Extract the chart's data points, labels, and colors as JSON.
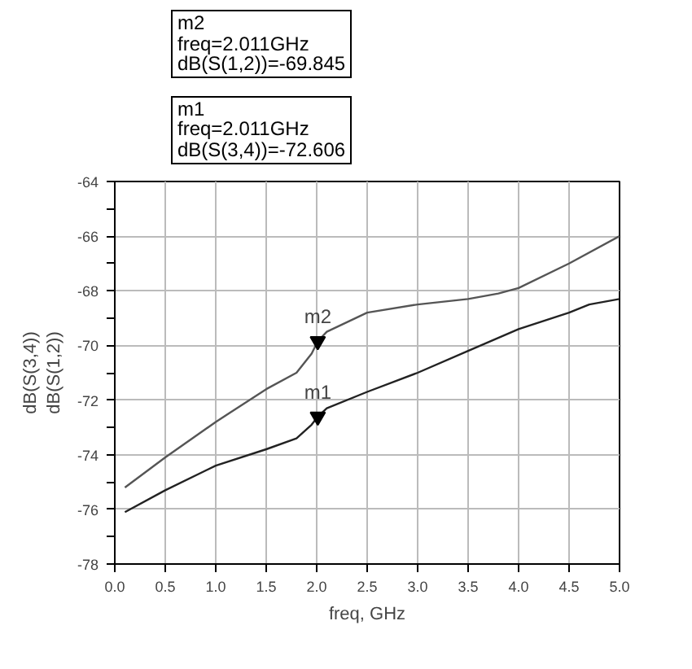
{
  "chart_data": {
    "type": "line",
    "xlabel": "freq, GHz",
    "ylabel": "dB(S(3,4))\ndB(S(1,2))",
    "xlim": [
      0,
      5
    ],
    "ylim": [
      -78,
      -64
    ],
    "xticks": [
      {
        "value": 0,
        "label": "0.0"
      },
      {
        "value": 0.5,
        "label": "0.5"
      },
      {
        "value": 1,
        "label": "1.0"
      },
      {
        "value": 1.5,
        "label": "1.5"
      },
      {
        "value": 2,
        "label": "2.0"
      },
      {
        "value": 2.5,
        "label": "2.5"
      },
      {
        "value": 3,
        "label": "3.0"
      },
      {
        "value": 3.5,
        "label": "3.5"
      },
      {
        "value": 4,
        "label": "4.0"
      },
      {
        "value": 4.5,
        "label": "4.5"
      },
      {
        "value": 5,
        "label": "5.0"
      }
    ],
    "yticks": [
      -78,
      {
        "value": -77,
        "label": null
      },
      -76,
      {
        "value": -75,
        "label": null
      },
      -74,
      {
        "value": -73,
        "label": null
      },
      -72,
      {
        "value": -71,
        "label": null
      },
      -70,
      {
        "value": -69,
        "label": null
      },
      -68,
      {
        "value": -67,
        "label": null
      },
      -66,
      {
        "value": -65,
        "label": null
      },
      -64
    ],
    "grid": true,
    "marker": "none",
    "line_style": "solid",
    "series": [
      {
        "color": "#555555",
        "x": [
          0.1,
          0.5,
          1.0,
          1.5,
          1.8,
          1.95,
          2.011,
          2.1,
          2.5,
          3.0,
          3.5,
          3.8,
          4.0,
          4.5,
          5.0
        ],
        "values": [
          -75.2,
          -74.1,
          -72.8,
          -71.6,
          -71.0,
          -70.3,
          -69.845,
          -69.5,
          -68.8,
          -68.5,
          -68.3,
          -68.1,
          -67.9,
          -67.0,
          -66.0
        ]
      },
      {
        "color": "#222222",
        "x": [
          0.1,
          0.5,
          1.0,
          1.5,
          1.8,
          1.95,
          2.011,
          2.1,
          2.5,
          3.0,
          3.5,
          4.0,
          4.5,
          4.7,
          5.0
        ],
        "values": [
          -76.1,
          -75.3,
          -74.4,
          -73.8,
          -73.4,
          -72.9,
          -72.606,
          -72.3,
          -71.7,
          -71.0,
          -70.2,
          -69.4,
          -68.8,
          -68.5,
          -68.3
        ]
      }
    ],
    "annotations": [
      "m2\nfreq=2.011GHz\ndB(S(1,2))=-69.845",
      "m1\nfreq=2.011GHz\ndB(S(3,4))=-72.606",
      {
        "text": "m2",
        "x": 2.011,
        "y": -69.845
      },
      {
        "text": "m1",
        "x": 2.011,
        "y": -72.606
      }
    ]
  }
}
